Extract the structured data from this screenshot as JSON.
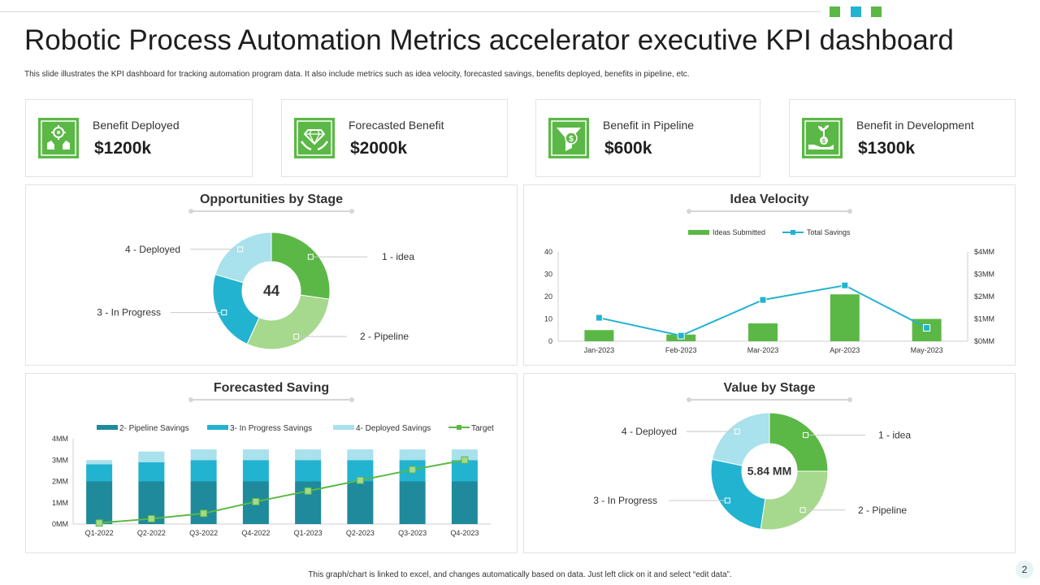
{
  "header": {
    "title": "Robotic Process Automation Metrics accelerator executive KPI dashboard",
    "subtitle": "This slide illustrates the KPI  dashboard for tracking automation program data. It also include metrics such as idea  velocity, forecasted savings, benefits deployed, benefits in pipeline, etc.",
    "corner_colors": [
      "#5bb846",
      "#22b3d0",
      "#5bb846"
    ]
  },
  "colors": {
    "green": "#5bb846",
    "light_green": "#a6d88d",
    "teal": "#22b3d0",
    "light_teal": "#a9e1ec",
    "dark_teal": "#1e8a9c"
  },
  "kpis": [
    {
      "label": "Benefit Deployed",
      "value": "$1200k",
      "icon": "hands-gear-icon"
    },
    {
      "label": "Forecasted Benefit",
      "value": "$2000k",
      "icon": "hands-diamond-icon"
    },
    {
      "label": "Benefit in Pipeline",
      "value": "$600k",
      "icon": "funnel-dollar-icon"
    },
    {
      "label": "Benefit in Development",
      "value": "$1300k",
      "icon": "hand-plant-dollar-icon"
    }
  ],
  "panels": {
    "opportunities": "Opportunities by Stage",
    "velocity": "Idea Velocity",
    "saving": "Forecasted Saving",
    "value": "Value by Stage"
  },
  "footer": "This graph/chart is linked to excel, and changes automatically based on data. Just left click on it and select “edit data”.",
  "page_number": "2",
  "chart_data": [
    {
      "type": "pie",
      "title": "Opportunities by Stage",
      "center_label": "44",
      "labels": [
        "1 - idea",
        "2 - Pipeline",
        "3 - In Progress",
        "4 - Deployed"
      ],
      "values": [
        12,
        13,
        10,
        9
      ],
      "colors": [
        "#5bb846",
        "#a6d88d",
        "#22b3d0",
        "#a9e1ec"
      ]
    },
    {
      "type": "bar",
      "title": "Idea Velocity",
      "categories": [
        "Jan-2023",
        "Feb-2023",
        "Mar-2023",
        "Apr-2023",
        "May-2023"
      ],
      "series": [
        {
          "name": "Ideas Submitted",
          "type": "bar",
          "axis": "left",
          "values": [
            5,
            3,
            8,
            21,
            10
          ],
          "color": "#5bb846"
        },
        {
          "name": "Total Savings",
          "type": "line",
          "axis": "right",
          "values": [
            1.05,
            0.25,
            1.85,
            2.5,
            0.6
          ],
          "color": "#22b3d0"
        }
      ],
      "ylim": [
        0,
        40
      ],
      "yticks": [
        0,
        10,
        20,
        30,
        40
      ],
      "y2lim": [
        0,
        4
      ],
      "y2ticks": [
        "$0MM",
        "$1MM",
        "$2MM",
        "$3MM",
        "$4MM"
      ]
    },
    {
      "type": "bar",
      "stacked": true,
      "title": "Forecasted Saving",
      "categories": [
        "Q1-2022",
        "Q2-2022",
        "Q3-2022",
        "Q4-2022",
        "Q1-2023",
        "Q2-2023",
        "Q3-2023",
        "Q4-2023"
      ],
      "series": [
        {
          "name": "2- Pipeline Savings",
          "type": "bar",
          "values": [
            2,
            2,
            2,
            2,
            2,
            2,
            2,
            2
          ],
          "color": "#1e8a9c"
        },
        {
          "name": "3- In Progress Savings",
          "type": "bar",
          "values": [
            0.8,
            0.9,
            1,
            1,
            1,
            1,
            1,
            1
          ],
          "color": "#22b3d0"
        },
        {
          "name": "4- Deployed Savings",
          "type": "bar",
          "values": [
            0.2,
            0.5,
            0.5,
            0.5,
            0.5,
            0.5,
            0.5,
            0.5
          ],
          "color": "#a9e1ec"
        },
        {
          "name": "Target",
          "type": "line",
          "values": [
            0.05,
            0.25,
            0.5,
            1.05,
            1.55,
            2.05,
            2.55,
            3.0
          ],
          "color": "#5bb846"
        }
      ],
      "ylim": [
        0,
        4
      ],
      "yticks": [
        "0MM",
        "1MM",
        "2MM",
        "3MM",
        "4MM"
      ]
    },
    {
      "type": "pie",
      "title": "Value by Stage",
      "center_label": "5.84 MM",
      "labels": [
        "1 - idea",
        "2 - Pipeline",
        "3 - In Progress",
        "4 - Deployed"
      ],
      "values": [
        1.46,
        1.6,
        1.51,
        1.27
      ],
      "colors": [
        "#5bb846",
        "#a6d88d",
        "#22b3d0",
        "#a9e1ec"
      ]
    }
  ]
}
